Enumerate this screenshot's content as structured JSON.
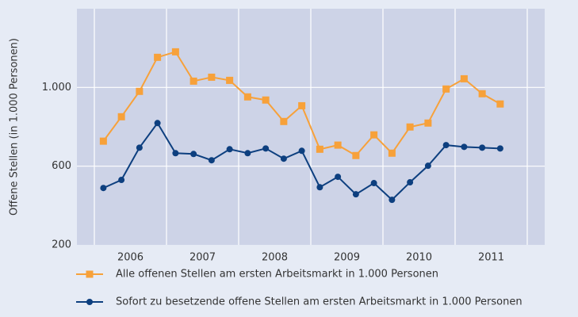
{
  "chart_data": {
    "type": "line",
    "y_label": "Offene Stellen (in 1.000 Personen)",
    "categories": [
      "2006",
      null,
      null,
      null,
      "2007",
      null,
      null,
      null,
      "2008",
      null,
      null,
      null,
      "2009",
      null,
      null,
      null,
      "2010",
      null,
      null,
      null,
      "2011",
      null,
      null,
      null
    ],
    "series": [
      {
        "name": "Alle offenen Stellen am ersten Arbeitsmarkt in 1.000 Personen",
        "color": "#f7a13a",
        "marker": "square",
        "values": [
          727,
          851,
          980,
          1153,
          1181,
          1032,
          1052,
          1036,
          952,
          936,
          827,
          907,
          686,
          707,
          654,
          759,
          666,
          799,
          819,
          992,
          1044,
          968,
          916,
          null
        ]
      },
      {
        "name": "Sofort zu besetzende offene Stellen am ersten Arbeitsmarkt in 1.000 Personen",
        "color": "#0d3f7f",
        "marker": "circle",
        "values": [
          489,
          530,
          694,
          819,
          666,
          662,
          630,
          686,
          666,
          690,
          638,
          678,
          493,
          546,
          457,
          514,
          429,
          518,
          602,
          707,
          698,
          694,
          690,
          null
        ]
      }
    ],
    "ylim": [
      200,
      1400
    ],
    "yticks": [
      200,
      600,
      {
        "value": 1000,
        "label": "1.000"
      }
    ],
    "grid": true
  }
}
